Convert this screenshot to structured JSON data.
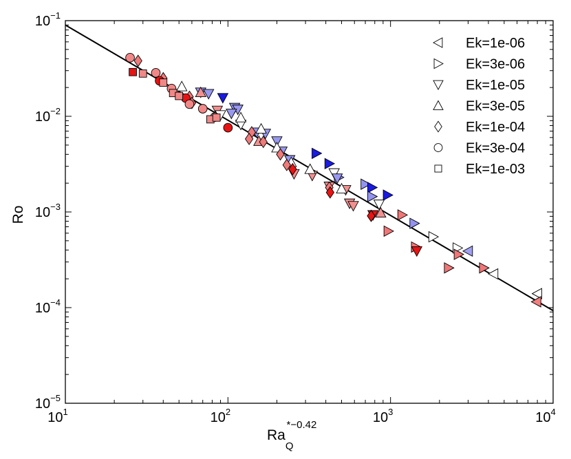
{
  "chart_data": {
    "type": "scatter",
    "title": "",
    "xlabel": {
      "base": "Ra",
      "subscript": "Q",
      "superscript": "*−0.42"
    },
    "ylabel": "Ro",
    "xscale": "log",
    "yscale": "log",
    "xlim": [
      10,
      10000
    ],
    "ylim": [
      1e-05,
      0.1
    ],
    "x_ticks": [
      {
        "value": 10,
        "base": "10",
        "exp": "1"
      },
      {
        "value": 100,
        "base": "10",
        "exp": "2"
      },
      {
        "value": 1000,
        "base": "10",
        "exp": "3"
      },
      {
        "value": 10000,
        "base": "10",
        "exp": "4"
      }
    ],
    "y_ticks": [
      {
        "value": 1e-05,
        "base": "10",
        "exp": "−5"
      },
      {
        "value": 0.0001,
        "base": "10",
        "exp": "−4"
      },
      {
        "value": 0.001,
        "base": "10",
        "exp": "−3"
      },
      {
        "value": 0.01,
        "base": "10",
        "exp": "−2"
      },
      {
        "value": 0.1,
        "base": "10",
        "exp": "−1"
      }
    ],
    "grid": false,
    "legend_position": "top-right",
    "fit_line": {
      "x": [
        10,
        10000
      ],
      "y": [
        0.09,
        9.3e-05
      ],
      "color": "#000000"
    },
    "series": [
      {
        "name": "Ek=1e-06",
        "marker": "triangle-left",
        "points": [
          {
            "x": 3000,
            "y": 0.00039,
            "fill": "#a0a0f5"
          },
          {
            "x": 4300,
            "y": 0.000225,
            "fill": "#ffffff"
          },
          {
            "x": 8000,
            "y": 0.00014,
            "fill": "#ffffff"
          },
          {
            "x": 7900,
            "y": 0.000115,
            "fill": "#f27f7f"
          }
        ]
      },
      {
        "name": "Ek=3e-06",
        "marker": "triangle-right",
        "points": [
          {
            "x": 350,
            "y": 0.0041,
            "fill": "#1a1ae0"
          },
          {
            "x": 420,
            "y": 0.0032,
            "fill": "#1a1ae0"
          },
          {
            "x": 480,
            "y": 0.0023,
            "fill": "#9393ef"
          },
          {
            "x": 700,
            "y": 0.00195,
            "fill": "#9393ef"
          },
          {
            "x": 770,
            "y": 0.0018,
            "fill": "#1a1ae0"
          },
          {
            "x": 770,
            "y": 0.00145,
            "fill": "#9393ef"
          },
          {
            "x": 960,
            "y": 0.0015,
            "fill": "#1a1ae0"
          },
          {
            "x": 1180,
            "y": 0.00093,
            "fill": "#ef7777"
          },
          {
            "x": 1400,
            "y": 0.00076,
            "fill": "#9393ef"
          },
          {
            "x": 970,
            "y": 0.00063,
            "fill": "#ef7777"
          },
          {
            "x": 1830,
            "y": 0.00055,
            "fill": "#ffffff"
          },
          {
            "x": 2580,
            "y": 0.00042,
            "fill": "#ffffff"
          },
          {
            "x": 1430,
            "y": 0.00043,
            "fill": "#ef7777"
          },
          {
            "x": 2620,
            "y": 0.00036,
            "fill": "#ef7777"
          },
          {
            "x": 2280,
            "y": 0.00026,
            "fill": "#ef7777"
          },
          {
            "x": 3750,
            "y": 0.00026,
            "fill": "#ef7777"
          }
        ]
      },
      {
        "name": "Ek=1e-05",
        "marker": "triangle-down",
        "points": [
          {
            "x": 68,
            "y": 0.0178,
            "fill": "#9898f0"
          },
          {
            "x": 76,
            "y": 0.0172,
            "fill": "#9898f0"
          },
          {
            "x": 93,
            "y": 0.0156,
            "fill": "#1a1ae0"
          },
          {
            "x": 110,
            "y": 0.0123,
            "fill": "#9898f0"
          },
          {
            "x": 115,
            "y": 0.0118,
            "fill": "#9898f0"
          },
          {
            "x": 105,
            "y": 0.0107,
            "fill": "#9898f0"
          },
          {
            "x": 86,
            "y": 0.0115,
            "fill": "#f09090"
          },
          {
            "x": 90,
            "y": 0.0103,
            "fill": "#ffffff"
          },
          {
            "x": 120,
            "y": 0.0082,
            "fill": "#ffffff"
          },
          {
            "x": 150,
            "y": 0.0068,
            "fill": "#9898f0"
          },
          {
            "x": 170,
            "y": 0.0066,
            "fill": "#9898f0"
          },
          {
            "x": 200,
            "y": 0.0055,
            "fill": "#9898f0"
          },
          {
            "x": 215,
            "y": 0.0043,
            "fill": "#9898f0"
          },
          {
            "x": 240,
            "y": 0.0035,
            "fill": "#9898f0"
          },
          {
            "x": 450,
            "y": 0.00255,
            "fill": "#ffffff"
          },
          {
            "x": 470,
            "y": 0.00225,
            "fill": "#9898f0"
          },
          {
            "x": 530,
            "y": 0.0017,
            "fill": "#f09090"
          },
          {
            "x": 560,
            "y": 0.00123,
            "fill": "#f09090"
          },
          {
            "x": 590,
            "y": 0.00116,
            "fill": "#f09090"
          },
          {
            "x": 850,
            "y": 0.0012,
            "fill": "#ffffff"
          },
          {
            "x": 420,
            "y": 0.00185,
            "fill": "#f09090"
          },
          {
            "x": 330,
            "y": 0.0024,
            "fill": "#f09090"
          },
          {
            "x": 255,
            "y": 0.0025,
            "fill": "#f09090"
          },
          {
            "x": 780,
            "y": 0.00093,
            "fill": "#e81414"
          },
          {
            "x": 1450,
            "y": 0.00039,
            "fill": "#e81414"
          }
        ]
      },
      {
        "name": "Ek=3e-05",
        "marker": "triangle-up",
        "points": [
          {
            "x": 52,
            "y": 0.0205,
            "fill": "#ffffff"
          },
          {
            "x": 68,
            "y": 0.0178,
            "fill": "#f09090"
          },
          {
            "x": 120,
            "y": 0.0097,
            "fill": "#ffffff"
          },
          {
            "x": 160,
            "y": 0.0074,
            "fill": "#ffffff"
          },
          {
            "x": 155,
            "y": 0.0055,
            "fill": "#f09090"
          },
          {
            "x": 200,
            "y": 0.0047,
            "fill": "#ffffff"
          },
          {
            "x": 245,
            "y": 0.0033,
            "fill": "#ffffff"
          },
          {
            "x": 320,
            "y": 0.0028,
            "fill": "#ffffff"
          },
          {
            "x": 500,
            "y": 0.00175,
            "fill": "#ffffff"
          },
          {
            "x": 870,
            "y": 0.00098,
            "fill": "#f09090"
          }
        ]
      },
      {
        "name": "Ek=1e-04",
        "marker": "diamond",
        "points": [
          {
            "x": 28,
            "y": 0.038,
            "fill": "#ef7a7a"
          },
          {
            "x": 40,
            "y": 0.025,
            "fill": "#ef7a7a"
          },
          {
            "x": 58,
            "y": 0.016,
            "fill": "#ef7a7a"
          },
          {
            "x": 60,
            "y": 0.0138,
            "fill": "#ef7a7a"
          },
          {
            "x": 140,
            "y": 0.0068,
            "fill": "#ef7a7a"
          },
          {
            "x": 135,
            "y": 0.0058,
            "fill": "#ef7a7a"
          },
          {
            "x": 165,
            "y": 0.0054,
            "fill": "#ef7a7a"
          },
          {
            "x": 210,
            "y": 0.004,
            "fill": "#ef7a7a"
          },
          {
            "x": 230,
            "y": 0.0031,
            "fill": "#ef7a7a"
          },
          {
            "x": 250,
            "y": 0.0028,
            "fill": "#e81414"
          },
          {
            "x": 420,
            "y": 0.0018,
            "fill": "#ef7a7a"
          },
          {
            "x": 425,
            "y": 0.0016,
            "fill": "#e81414"
          },
          {
            "x": 760,
            "y": 0.00091,
            "fill": "#e81414"
          }
        ]
      },
      {
        "name": "Ek=3e-04",
        "marker": "circle",
        "points": [
          {
            "x": 25,
            "y": 0.041,
            "fill": "#f08888"
          },
          {
            "x": 36,
            "y": 0.0285,
            "fill": "#f08888"
          },
          {
            "x": 38,
            "y": 0.0235,
            "fill": "#e81414"
          },
          {
            "x": 45,
            "y": 0.0195,
            "fill": "#f08888"
          },
          {
            "x": 55,
            "y": 0.0155,
            "fill": "#e81414"
          },
          {
            "x": 58,
            "y": 0.0134,
            "fill": "#f08888"
          },
          {
            "x": 70,
            "y": 0.012,
            "fill": "#f08888"
          },
          {
            "x": 83,
            "y": 0.0098,
            "fill": "#f08888"
          },
          {
            "x": 100,
            "y": 0.0076,
            "fill": "#e81414"
          }
        ]
      },
      {
        "name": "Ek=1e-03",
        "marker": "square",
        "points": [
          {
            "x": 26,
            "y": 0.029,
            "fill": "#e81414"
          },
          {
            "x": 30,
            "y": 0.028,
            "fill": "#f08888"
          },
          {
            "x": 40,
            "y": 0.0225,
            "fill": "#f08888"
          },
          {
            "x": 46,
            "y": 0.0175,
            "fill": "#f08888"
          },
          {
            "x": 50,
            "y": 0.0163,
            "fill": "#f08888"
          },
          {
            "x": 78,
            "y": 0.0093,
            "fill": "#f08888"
          },
          {
            "x": 85,
            "y": 0.0097,
            "fill": "#f08888"
          }
        ]
      }
    ]
  }
}
